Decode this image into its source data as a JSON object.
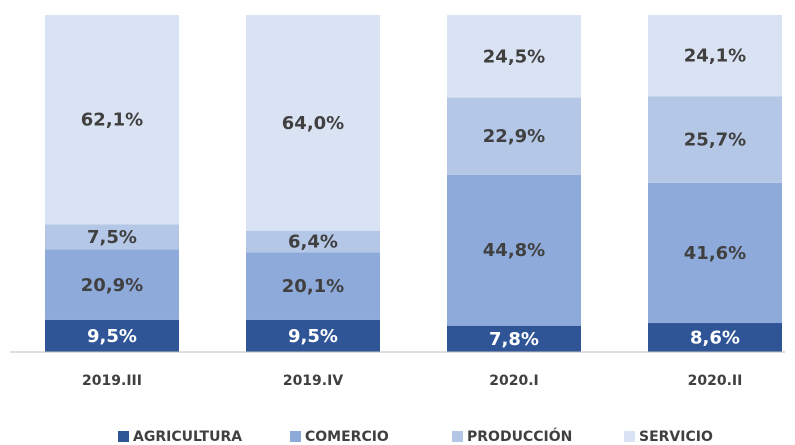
{
  "chart_data": {
    "type": "bar",
    "stacked": true,
    "categories": [
      "2019.III",
      "2019.IV",
      "2020.I",
      "2020.II"
    ],
    "ylim": [
      0,
      100
    ],
    "series": [
      {
        "name": "AGRICULTURA",
        "color": "#2f5597",
        "values": [
          9.5,
          9.5,
          7.8,
          8.6
        ],
        "value_labels": [
          "9,5%",
          "9,5%",
          "7,8%",
          "8,6%"
        ]
      },
      {
        "name": "COMERCIO",
        "color": "#8eaadb",
        "values": [
          20.9,
          20.1,
          44.8,
          41.6
        ],
        "value_labels": [
          "20,9%",
          "20,1%",
          "44,8%",
          "41,6%"
        ]
      },
      {
        "name": "PRODUCCIÓN",
        "color": "#b4c7e7",
        "values": [
          7.5,
          6.4,
          22.9,
          25.7
        ],
        "value_labels": [
          "7,5%",
          "6,4%",
          "22,9%",
          "25,7%"
        ]
      },
      {
        "name": "SERVICIO",
        "color": "#dae3f3",
        "values": [
          62.1,
          64.0,
          24.5,
          24.1
        ],
        "value_labels": [
          "62,1%",
          "64,0%",
          "24,5%",
          "24,1%"
        ]
      }
    ]
  }
}
